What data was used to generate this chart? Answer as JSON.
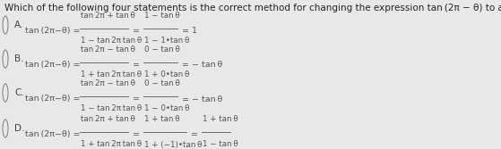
{
  "bg_color": "#e8e8e8",
  "title": "Which of the following four statements is the correct method for changing the expression tan (2π − θ) to an expression without an angle measure?",
  "title_fontsize": 7.5,
  "title_color": "#222222",
  "label_fontsize": 7.5,
  "formula_fontsize": 6.8,
  "label_color": "#444444",
  "formula_color": "#555555",
  "radio_color": "#888888",
  "options": [
    {
      "label": "A.",
      "left_text": "tan (2π−θ) =",
      "frac1_num": "tan 2π + tan θ",
      "frac1_den": "1 − tan 2π tan θ",
      "sep1": "=",
      "frac2_num": "1 − tan θ",
      "frac2_den": "1 − 1•tan θ",
      "result": "= 1"
    },
    {
      "label": "B.",
      "left_text": "tan (2π−θ) =",
      "frac1_num": "tan 2π − tan θ",
      "frac1_den": "1 + tan 2π tan θ",
      "sep1": "=",
      "frac2_num": "0 − tan θ",
      "frac2_den": "1 + 0•tan θ",
      "result": "= − tan θ"
    },
    {
      "label": "C.",
      "left_text": "tan (2π−θ) =",
      "frac1_num": "tan 2π − tan θ",
      "frac1_den": "1 − tan 2π tan θ",
      "sep1": "=",
      "frac2_num": "0 − tan θ",
      "frac2_den": "1 − 0•tan θ",
      "result": "= − tan θ"
    },
    {
      "label": "D.",
      "left_text": "tan (2π−θ) =",
      "frac1_num": "tan 2π + tan θ",
      "frac1_den": "1 + tan 2π tan θ",
      "sep1": "=",
      "frac2_num": "1 + tan θ",
      "frac2_den": "1 + (−1)•tan θ",
      "sep2": "=",
      "frac3_num": "1 + tan θ",
      "frac3_den": "1 − tan θ",
      "result": ""
    }
  ]
}
